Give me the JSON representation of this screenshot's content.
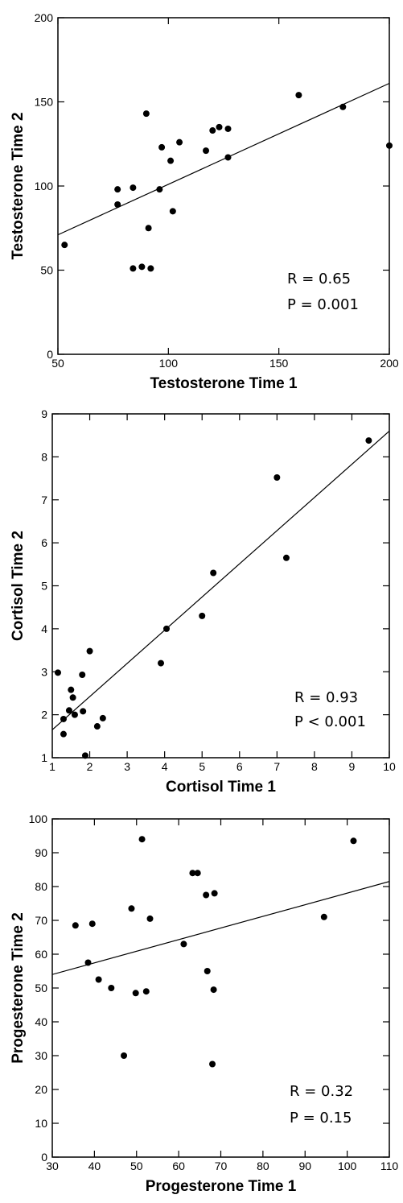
{
  "chart_data": [
    {
      "type": "scatter",
      "xlabel": "Testosterone Time 1",
      "ylabel": "Testosterone Time 2",
      "xlim": [
        50,
        200
      ],
      "ylim": [
        0,
        200
      ],
      "xticks": [
        50,
        100,
        150,
        200
      ],
      "yticks": [
        0,
        50,
        100,
        150,
        200
      ],
      "xtick_labels": [
        "50",
        "100",
        "150",
        "200"
      ],
      "ytick_labels": [
        "0",
        "50",
        "100",
        "150",
        "200"
      ],
      "annotations": [
        "R = 0.65",
        "P = 0.001"
      ],
      "fit_line": [
        [
          50,
          71
        ],
        [
          200,
          161
        ]
      ],
      "points": [
        [
          53,
          65
        ],
        [
          77,
          98
        ],
        [
          77,
          89
        ],
        [
          84,
          99
        ],
        [
          84,
          51
        ],
        [
          88,
          52
        ],
        [
          90,
          143
        ],
        [
          91,
          75
        ],
        [
          92,
          51
        ],
        [
          96,
          98
        ],
        [
          97,
          123
        ],
        [
          101,
          115
        ],
        [
          102,
          85
        ],
        [
          105,
          126
        ],
        [
          117,
          121
        ],
        [
          120,
          133
        ],
        [
          123,
          135
        ],
        [
          127,
          134
        ],
        [
          127,
          117
        ],
        [
          159,
          154
        ],
        [
          179,
          147
        ],
        [
          200,
          124
        ]
      ]
    },
    {
      "type": "scatter",
      "xlabel": "Cortisol Time 1",
      "ylabel": "Cortisol Time 2",
      "xlim": [
        1,
        10
      ],
      "ylim": [
        1,
        9
      ],
      "xticks": [
        1,
        2,
        3,
        4,
        5,
        6,
        7,
        8,
        9,
        10
      ],
      "yticks": [
        1,
        2,
        3,
        4,
        5,
        6,
        7,
        8,
        9
      ],
      "xtick_labels": [
        "1",
        "2",
        "3",
        "4",
        "5",
        "6",
        "7",
        "8",
        "9",
        "10"
      ],
      "ytick_labels": [
        "1",
        "2",
        "3",
        "4",
        "5",
        "6",
        "7",
        "8",
        "9"
      ],
      "annotations": [
        "R = 0.93",
        "P < 0.001"
      ],
      "fit_line": [
        [
          1,
          1.65
        ],
        [
          10,
          8.6
        ]
      ],
      "points": [
        [
          1.15,
          2.98
        ],
        [
          1.3,
          1.55
        ],
        [
          1.3,
          1.9
        ],
        [
          1.45,
          2.1
        ],
        [
          1.5,
          2.58
        ],
        [
          1.55,
          2.4
        ],
        [
          1.6,
          2.0
        ],
        [
          1.8,
          2.93
        ],
        [
          1.82,
          2.08
        ],
        [
          1.88,
          1.05
        ],
        [
          2.0,
          3.48
        ],
        [
          2.2,
          1.73
        ],
        [
          2.35,
          1.92
        ],
        [
          3.9,
          3.2
        ],
        [
          4.05,
          4.0
        ],
        [
          5.0,
          4.3
        ],
        [
          5.3,
          5.3
        ],
        [
          7.0,
          7.52
        ],
        [
          7.25,
          5.65
        ],
        [
          9.45,
          8.38
        ]
      ]
    },
    {
      "type": "scatter",
      "xlabel": "Progesterone Time 1",
      "ylabel": "Progesterone Time 2",
      "xlim": [
        30,
        110
      ],
      "ylim": [
        0,
        100
      ],
      "xticks": [
        30,
        40,
        50,
        60,
        70,
        80,
        90,
        100,
        110
      ],
      "yticks": [
        0,
        10,
        20,
        30,
        40,
        50,
        60,
        70,
        80,
        90,
        100
      ],
      "xtick_labels": [
        "30",
        "40",
        "50",
        "60",
        "70",
        "80",
        "90",
        "100",
        "110"
      ],
      "ytick_labels": [
        "0",
        "10",
        "20",
        "30",
        "40",
        "50",
        "60",
        "70",
        "80",
        "90",
        "100"
      ],
      "annotations": [
        "R = 0.32",
        "P = 0.15"
      ],
      "fit_line": [
        [
          30,
          54
        ],
        [
          110,
          81.5
        ]
      ],
      "points": [
        [
          35.5,
          68.5
        ],
        [
          38.5,
          57.5
        ],
        [
          39.5,
          69
        ],
        [
          41,
          52.5
        ],
        [
          44,
          50
        ],
        [
          47,
          30
        ],
        [
          48.8,
          73.5
        ],
        [
          49.8,
          48.5
        ],
        [
          51.3,
          94
        ],
        [
          52.3,
          49
        ],
        [
          53.2,
          70.5
        ],
        [
          61.2,
          63
        ],
        [
          63.3,
          84
        ],
        [
          64.5,
          84
        ],
        [
          66.5,
          77.5
        ],
        [
          66.8,
          55
        ],
        [
          68,
          27.5
        ],
        [
          68.3,
          49.5
        ],
        [
          68.5,
          78
        ],
        [
          94.5,
          71
        ],
        [
          101.5,
          93.5
        ]
      ]
    }
  ]
}
